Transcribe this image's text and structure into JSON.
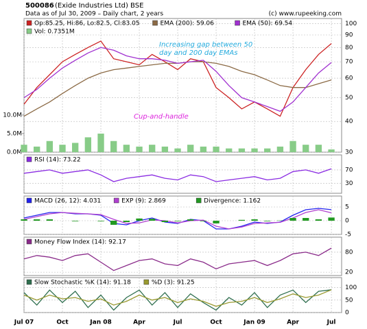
{
  "chart_data": [
    {
      "type": "line",
      "title": "500086",
      "subtitle": "(Exide Industries Ltd) BSE",
      "caption": "Data as of Jul 30, 2009 – Daily chart, 2 years",
      "source": "(c) www.rupeeking.com",
      "annotations": [
        "Increasing gap between 50",
        "day and 200 day EMAs",
        "Cup-and-handle"
      ],
      "log_scale": true,
      "x": [
        0,
        1,
        2,
        3,
        4,
        5,
        6,
        7,
        8,
        9,
        10,
        11,
        12,
        13,
        14,
        15,
        16,
        17,
        18,
        19,
        20,
        21,
        22,
        23,
        24
      ],
      "xlim": [
        0,
        24.8
      ],
      "ylim": [
        30,
        105
      ],
      "yticks": [
        30,
        40,
        50,
        60,
        70,
        80,
        90,
        100
      ],
      "y2lim": [
        0,
        36
      ],
      "y2ticks": [
        {
          "value": 0,
          "label": "0.0M"
        },
        {
          "value": 5,
          "label": "5.0M"
        },
        {
          "value": 10,
          "label": "10.0M"
        }
      ],
      "series": [
        {
          "name": "Op:85.25, Hi:86, Lo:82.5, Cl:83.05",
          "color": "#cc2222",
          "values": [
            47,
            55,
            62,
            70,
            75,
            80,
            85,
            72,
            70,
            68,
            75,
            70,
            65,
            72,
            70,
            55,
            50,
            45,
            48,
            45,
            42,
            55,
            65,
            75,
            83.05
          ]
        },
        {
          "name": "EMA (200): 59.06",
          "color": "#8b6a45",
          "values": [
            42,
            45,
            48,
            52,
            56,
            60,
            63,
            65,
            66,
            67,
            68,
            69,
            69,
            70,
            70,
            69,
            67,
            64,
            62,
            59,
            56,
            55,
            55,
            57,
            59.06
          ]
        },
        {
          "name": "EMA (50): 69.54",
          "color": "#a030d0",
          "values": [
            50,
            54,
            60,
            66,
            71,
            76,
            80,
            78,
            74,
            72,
            72,
            71,
            69,
            70,
            71,
            64,
            56,
            50,
            48,
            46,
            44,
            48,
            55,
            63,
            69.54
          ]
        },
        {
          "name": "Vol: 0.7351M",
          "color": "#88cc88",
          "type": "bar",
          "axis": "y2",
          "values": [
            2,
            1.5,
            3,
            2,
            2.5,
            4,
            5,
            3,
            2,
            1.5,
            2,
            1.5,
            1,
            2,
            1.5,
            1.5,
            1,
            1,
            1,
            1,
            1.5,
            3,
            2,
            2,
            0.7351
          ]
        }
      ]
    },
    {
      "type": "line",
      "x": [
        0,
        1,
        2,
        3,
        4,
        5,
        6,
        7,
        8,
        9,
        10,
        11,
        12,
        13,
        14,
        15,
        16,
        17,
        18,
        19,
        20,
        21,
        22,
        23,
        24
      ],
      "xlim": [
        0,
        24.8
      ],
      "ylim": [
        0,
        115
      ],
      "yticks": [
        30,
        70
      ],
      "series": [
        {
          "name": "RSI (14): 73.22",
          "color": "#8a2be2",
          "values": [
            60,
            65,
            70,
            60,
            65,
            70,
            55,
            35,
            45,
            50,
            55,
            45,
            40,
            55,
            50,
            35,
            40,
            45,
            50,
            40,
            45,
            65,
            70,
            60,
            73.22
          ]
        }
      ]
    },
    {
      "type": "line",
      "x": [
        0,
        1,
        2,
        3,
        4,
        5,
        6,
        7,
        8,
        9,
        10,
        11,
        12,
        13,
        14,
        15,
        16,
        17,
        18,
        19,
        20,
        21,
        22,
        23,
        24
      ],
      "xlim": [
        0,
        24.8
      ],
      "ylim": [
        -5,
        9
      ],
      "yticks": [
        5,
        0,
        -5
      ],
      "series": [
        {
          "name": "MACD (26, 12): 4.031",
          "color": "#2222ee",
          "values": [
            1,
            2,
            3,
            3,
            2.5,
            2.5,
            2,
            -1,
            -1.5,
            0,
            1,
            -0.5,
            -1,
            0.5,
            0,
            -3,
            -3,
            -2,
            -0.5,
            -1,
            -0.5,
            2,
            4,
            4.5,
            4.031
          ]
        },
        {
          "name": "EXP (9): 2.869",
          "color": "#b040d0",
          "values": [
            0.5,
            1.5,
            2.5,
            3,
            2.7,
            2.5,
            2.2,
            0.5,
            -1,
            -0.8,
            0.3,
            0,
            -0.8,
            0,
            0.2,
            -2,
            -3,
            -2.3,
            -1,
            -0.8,
            -0.6,
            1,
            3,
            4,
            2.869
          ]
        },
        {
          "name": "Divergence: 1.162",
          "color": "#229922",
          "type": "bar",
          "values": [
            0.5,
            0.5,
            0.5,
            0,
            -0.2,
            0,
            -0.2,
            -1.5,
            -0.5,
            0.8,
            0.7,
            -0.5,
            -0.2,
            0.5,
            -0.2,
            -1,
            0,
            0.3,
            0.5,
            -0.2,
            0.1,
            1,
            1,
            0.5,
            1.162
          ]
        }
      ]
    },
    {
      "type": "line",
      "x": [
        0,
        1,
        2,
        3,
        4,
        5,
        6,
        7,
        8,
        9,
        10,
        11,
        12,
        13,
        14,
        15,
        16,
        17,
        18,
        19,
        20,
        21,
        22,
        23,
        24
      ],
      "xlim": [
        0,
        24.8
      ],
      "ylim": [
        10,
        125
      ],
      "yticks": [
        80,
        20
      ],
      "series": [
        {
          "name": "Money Flow Index (14): 92.17",
          "color": "#8a2b8a",
          "values": [
            60,
            70,
            65,
            55,
            70,
            75,
            50,
            25,
            40,
            55,
            60,
            45,
            40,
            60,
            50,
            30,
            45,
            50,
            55,
            40,
            55,
            75,
            80,
            70,
            92.17
          ]
        }
      ]
    },
    {
      "type": "line",
      "x": [
        0,
        1,
        2,
        3,
        4,
        5,
        6,
        7,
        8,
        9,
        10,
        11,
        12,
        13,
        14,
        15,
        16,
        17,
        18,
        19,
        20,
        21,
        22,
        23,
        24
      ],
      "xlim": [
        0,
        24.8
      ],
      "ylim": [
        0,
        140
      ],
      "yticks": [
        100,
        50,
        0
      ],
      "xticks": [
        {
          "value": 0,
          "label": "Jul 07"
        },
        {
          "value": 3,
          "label": "Oct"
        },
        {
          "value": 6,
          "label": "Jan 08"
        },
        {
          "value": 9,
          "label": "Apr"
        },
        {
          "value": 12,
          "label": "Jul"
        },
        {
          "value": 15,
          "label": "Oct"
        },
        {
          "value": 18,
          "label": "Jan 09"
        },
        {
          "value": 21,
          "label": "Apr"
        },
        {
          "value": 24,
          "label": "Jul"
        }
      ],
      "series": [
        {
          "name": "Slow Stochastic %K (14): 91.18",
          "color": "#2f6f4f",
          "values": [
            80,
            30,
            90,
            40,
            85,
            20,
            70,
            10,
            60,
            90,
            30,
            80,
            20,
            75,
            40,
            10,
            60,
            30,
            80,
            20,
            70,
            90,
            40,
            85,
            91.18
          ]
        },
        {
          "name": "%D (3): 91.25",
          "color": "#9a9a30",
          "values": [
            70,
            50,
            70,
            55,
            60,
            45,
            55,
            30,
            45,
            70,
            50,
            60,
            40,
            55,
            45,
            25,
            40,
            45,
            60,
            40,
            55,
            75,
            60,
            70,
            91.25
          ]
        }
      ]
    }
  ]
}
